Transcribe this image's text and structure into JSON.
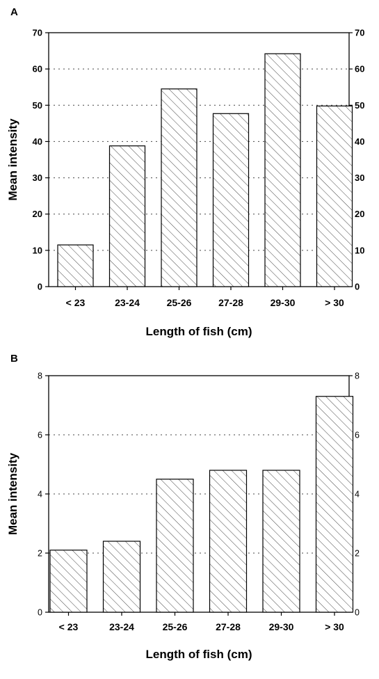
{
  "chart_data": [
    {
      "panel": "A",
      "type": "bar",
      "categories": [
        "< 23",
        "23-24",
        "25-26",
        "27-28",
        "29-30",
        "> 30"
      ],
      "values": [
        11.5,
        38.8,
        54.5,
        47.7,
        64.2,
        49.8
      ],
      "ylabel": "Mean intensity",
      "xlabel": "Length of fish (cm)",
      "ylim": [
        0,
        70
      ],
      "yticks": [
        0,
        10,
        20,
        30,
        40,
        50,
        60,
        70
      ],
      "grid": true,
      "bar_pattern": "diagonal hatch"
    },
    {
      "panel": "B",
      "type": "bar",
      "categories": [
        "< 23",
        "23-24",
        "25-26",
        "27-28",
        "29-30",
        "> 30"
      ],
      "values": [
        2.1,
        2.4,
        4.5,
        4.8,
        4.8,
        7.3
      ],
      "ylabel": "Mean intensity",
      "xlabel": "Length of fish (cm)",
      "ylim": [
        0,
        8
      ],
      "yticks": [
        0,
        2,
        4,
        6,
        8
      ],
      "grid": true,
      "bar_pattern": "diagonal hatch"
    }
  ]
}
